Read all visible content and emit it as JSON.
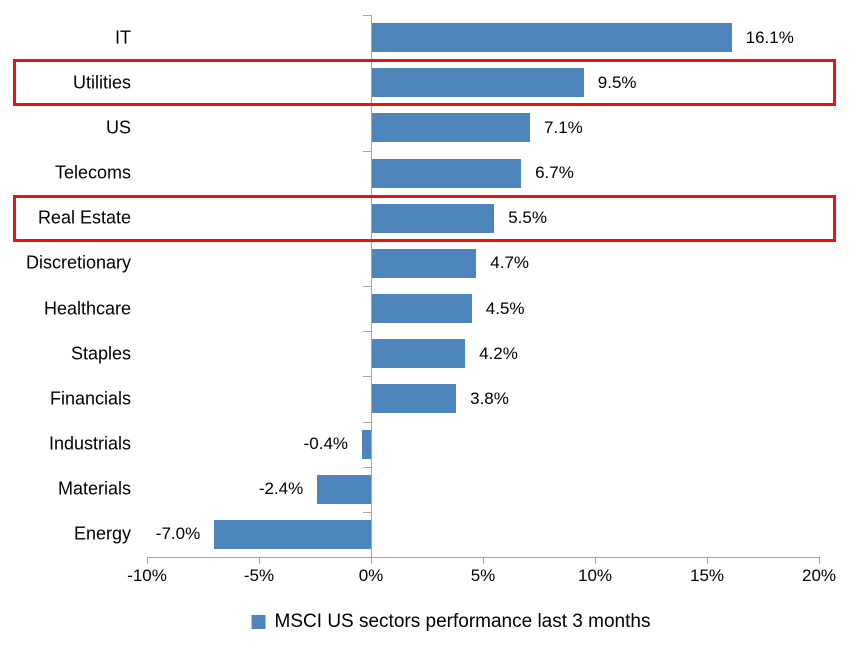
{
  "chart_data": {
    "type": "bar",
    "orientation": "horizontal",
    "categories": [
      "IT",
      "Utilities",
      "US",
      "Telecoms",
      "Real Estate",
      "Discretionary",
      "Healthcare",
      "Staples",
      "Financials",
      "Industrials",
      "Materials",
      "Energy"
    ],
    "values": [
      16.1,
      9.5,
      7.1,
      6.7,
      5.5,
      4.7,
      4.5,
      4.2,
      3.8,
      -0.4,
      -2.4,
      -7.0
    ],
    "value_labels": [
      "16.1%",
      "9.5%",
      "7.1%",
      "6.7%",
      "5.5%",
      "4.7%",
      "4.5%",
      "4.2%",
      "3.8%",
      "-0.4%",
      "-2.4%",
      "-7.0%"
    ],
    "highlighted_categories": [
      "Utilities",
      "Real Estate"
    ],
    "x_ticks": [
      "-10%",
      "-5%",
      "0%",
      "5%",
      "10%",
      "15%",
      "20%"
    ],
    "x_tick_values": [
      -10,
      -5,
      0,
      5,
      10,
      15,
      20
    ],
    "x_range": [
      -10,
      20
    ],
    "grid": "off",
    "legend": "MSCI US sectors performance last 3 months",
    "legend_position": "bottom-center",
    "colors": {
      "bar": "#4e86bc",
      "highlight_border": "#ee1111",
      "axis": "#a6a6a6",
      "text": "#000000",
      "background": "#ffffff"
    }
  }
}
